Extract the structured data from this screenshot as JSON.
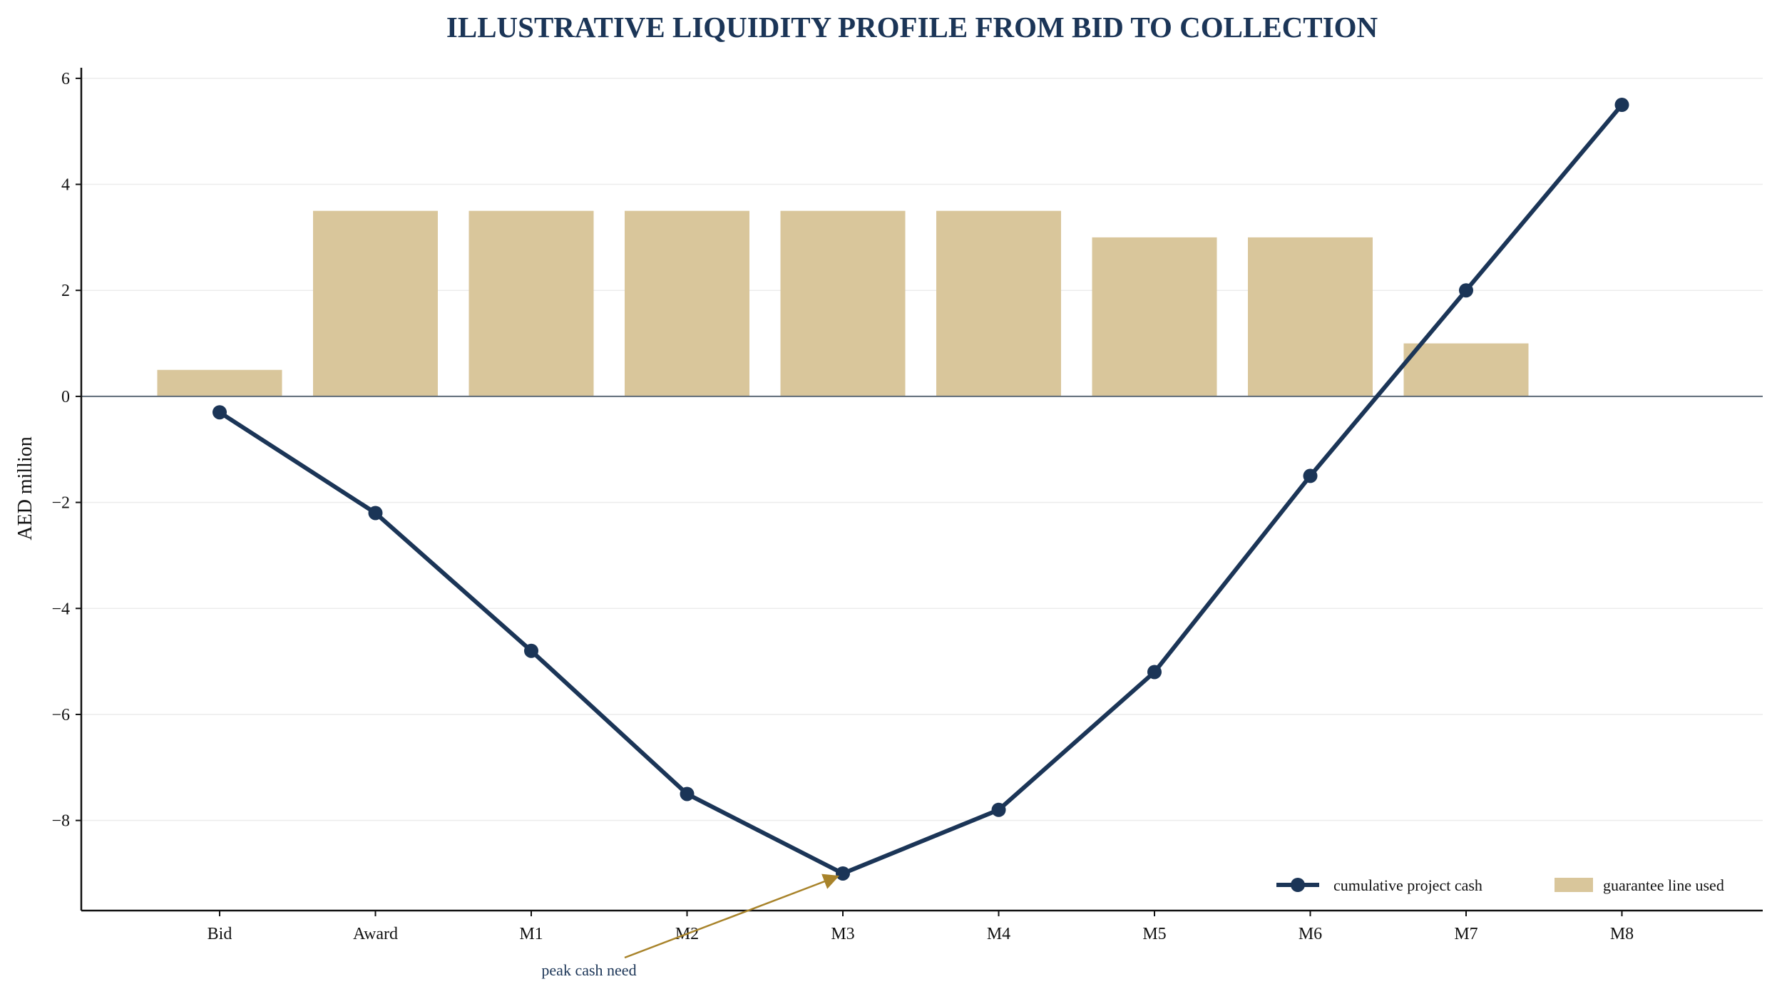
{
  "chart_data": {
    "type": "bar",
    "title": "ILLUSTRATIVE LIQUIDITY PROFILE FROM BID TO COLLECTION",
    "xlabel": "",
    "ylabel": "AED million",
    "ylim": [
      -9.7,
      6.2
    ],
    "yticks": [
      6,
      4,
      2,
      0,
      -2,
      -4,
      -6,
      -8
    ],
    "ytick_labels": [
      "6",
      "4",
      "2",
      "0",
      "−2",
      "−4",
      "−6",
      "−8"
    ],
    "grid": "horizontal",
    "categories": [
      "Bid",
      "Award",
      "M1",
      "M2",
      "M3",
      "M4",
      "M5",
      "M6",
      "M7",
      "M8"
    ],
    "series": [
      {
        "name": "cumulative project cash",
        "kind": "line",
        "values": [
          -0.3,
          -2.2,
          -4.8,
          -7.5,
          -9.0,
          -7.8,
          -5.2,
          -1.5,
          2.0,
          5.5
        ]
      },
      {
        "name": "guarantee line used",
        "kind": "bar",
        "values": [
          0.5,
          3.5,
          3.5,
          3.5,
          3.5,
          3.5,
          3.0,
          3.0,
          1.0,
          0
        ]
      }
    ],
    "annotations": [
      {
        "text": "peak cash need",
        "target_category": "M3",
        "target_value": -9.0
      }
    ],
    "legend_placement": "lower-right",
    "colors": {
      "line": "#1b3557",
      "bar": "#d9c69b",
      "annotation_arrow": "#a8832a",
      "title": "#1b3557",
      "grid": "#ececec",
      "zero_line": "#5f6b78"
    }
  }
}
